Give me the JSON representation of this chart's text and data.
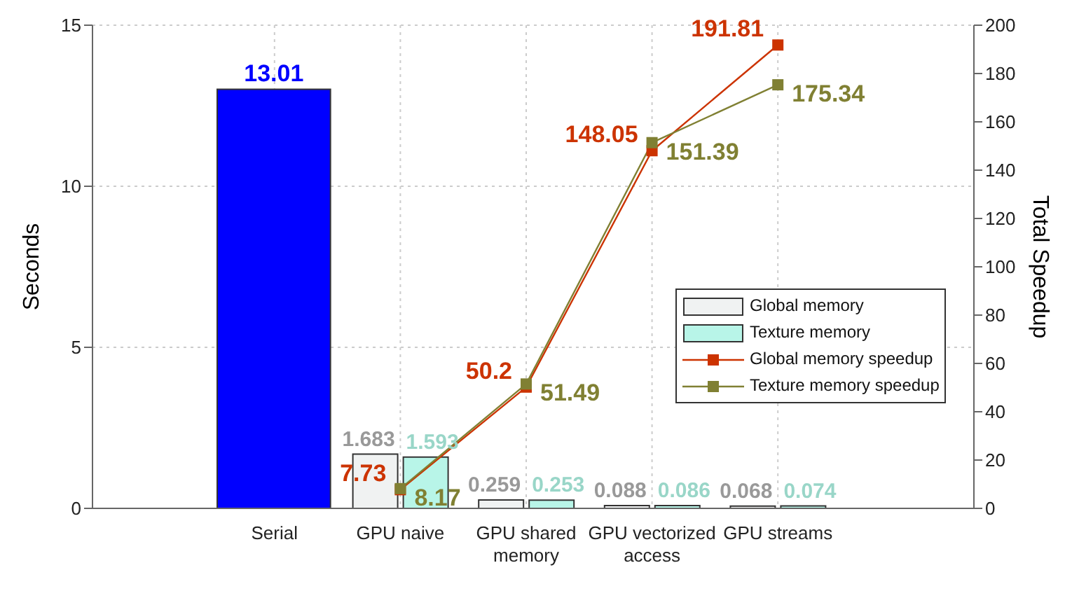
{
  "chart_data": {
    "type": "bar",
    "categories": [
      "Serial",
      "GPU naive",
      "GPU shared memory",
      "GPU vectorized access",
      "GPU streams"
    ],
    "ylabel": "Seconds",
    "y2label": "Total Speedup",
    "ylim": [
      0,
      15
    ],
    "yticks": [
      0,
      5,
      10,
      15
    ],
    "y2lim": [
      0,
      200
    ],
    "y2ticks": [
      0,
      20,
      40,
      60,
      80,
      100,
      120,
      140,
      160,
      180,
      200
    ],
    "series": [
      {
        "color": "#0000ff",
        "values": [
          13.01,
          null,
          null,
          null,
          null
        ]
      },
      {
        "name": "Global memory",
        "color": "#f0f2f2",
        "values": [
          null,
          1.683,
          0.259,
          0.088,
          0.068
        ]
      },
      {
        "name": "Texture memory",
        "color": "#b8f5e8",
        "values": [
          null,
          1.593,
          0.253,
          0.086,
          0.074
        ]
      },
      {
        "name": "Global memory speedup",
        "type": "line",
        "axis": "y2",
        "color": "#cc3300",
        "marker": "square",
        "values": [
          null,
          7.73,
          50.2,
          148.05,
          191.81
        ]
      },
      {
        "name": "Texture memory speedup",
        "type": "line",
        "axis": "y2",
        "color": "#808033",
        "marker": "square",
        "values": [
          null,
          8.17,
          51.49,
          151.39,
          175.34
        ]
      }
    ],
    "data_labels": true,
    "grid": true,
    "legend": "right"
  }
}
